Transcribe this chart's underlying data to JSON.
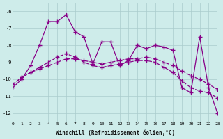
{
  "xlabel": "Windchill (Refroidissement éolien,°C)",
  "background_color": "#ceecea",
  "line_color": "#880088",
  "grid_color": "#aacccc",
  "xmin": 0,
  "xmax": 23,
  "ymin": -12.5,
  "ymax": -5.5,
  "yticks": [
    -12,
    -11,
    -10,
    -9,
    -8,
    -7,
    -6
  ],
  "line1_x": [
    0,
    1,
    2,
    3,
    4,
    5,
    6,
    7,
    8,
    9,
    10,
    11,
    12,
    13,
    14,
    15,
    16,
    17,
    18,
    19,
    20,
    21,
    22,
    23
  ],
  "line1_y": [
    -10.5,
    -10.0,
    -9.2,
    -8.0,
    -6.6,
    -6.6,
    -6.2,
    -7.2,
    -7.5,
    -9.1,
    -7.8,
    -7.8,
    -9.2,
    -8.9,
    -8.0,
    -8.2,
    -8.0,
    -8.1,
    -8.3,
    -10.5,
    -10.8,
    -7.5,
    -10.5,
    -12.0
  ],
  "line2_x": [
    0,
    1,
    2,
    3,
    4,
    5,
    6,
    7,
    8,
    9,
    10,
    11,
    12,
    13,
    14,
    15,
    16,
    17,
    18,
    19,
    20,
    21,
    22,
    23
  ],
  "line2_y": [
    -10.3,
    -9.9,
    -9.6,
    -9.4,
    -9.2,
    -9.0,
    -8.8,
    -8.8,
    -8.9,
    -9.0,
    -9.1,
    -9.0,
    -8.9,
    -8.8,
    -8.8,
    -8.7,
    -8.8,
    -9.0,
    -9.2,
    -9.5,
    -9.8,
    -10.0,
    -10.3,
    -10.6
  ],
  "line3_x": [
    0,
    1,
    2,
    3,
    4,
    5,
    6,
    7,
    8,
    9,
    10,
    11,
    12,
    13,
    14,
    15,
    16,
    17,
    18,
    19,
    20,
    21,
    22,
    23
  ],
  "line3_y": [
    -10.3,
    -9.9,
    -9.6,
    -9.3,
    -9.0,
    -8.7,
    -8.5,
    -8.7,
    -9.0,
    -9.2,
    -9.3,
    -9.2,
    -9.1,
    -9.0,
    -8.9,
    -8.9,
    -9.0,
    -9.3,
    -9.6,
    -10.1,
    -10.5,
    -10.7,
    -10.8,
    -11.1
  ]
}
